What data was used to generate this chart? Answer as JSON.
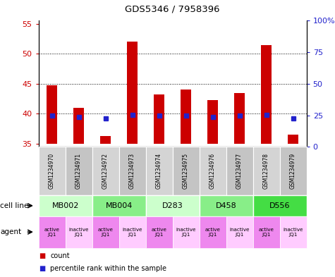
{
  "title": "GDS5346 / 7958396",
  "samples": [
    "GSM1234970",
    "GSM1234971",
    "GSM1234972",
    "GSM1234973",
    "GSM1234974",
    "GSM1234975",
    "GSM1234976",
    "GSM1234977",
    "GSM1234978",
    "GSM1234979"
  ],
  "count_values": [
    44.7,
    41.0,
    36.3,
    52.0,
    43.2,
    44.0,
    42.3,
    43.5,
    51.5,
    36.5
  ],
  "percentile_values": [
    24.5,
    23.5,
    22.5,
    25.5,
    24.5,
    24.5,
    23.5,
    24.5,
    25.5,
    22.5
  ],
  "count_base": 35.0,
  "ylim_left": [
    34.5,
    55.5
  ],
  "ylim_right": [
    0,
    100
  ],
  "yticks_left": [
    35,
    40,
    45,
    50,
    55
  ],
  "yticks_right": [
    0,
    25,
    50,
    75,
    100
  ],
  "ytick_labels_right": [
    "0",
    "25",
    "50",
    "75",
    "100%"
  ],
  "bar_color": "#cc0000",
  "dot_color": "#2222cc",
  "cell_lines": [
    {
      "label": "MB002",
      "cols": [
        0,
        1
      ],
      "color": "#ccffcc"
    },
    {
      "label": "MB004",
      "cols": [
        2,
        3
      ],
      "color": "#88ee88"
    },
    {
      "label": "D283",
      "cols": [
        4,
        5
      ],
      "color": "#ccffcc"
    },
    {
      "label": "D458",
      "cols": [
        6,
        7
      ],
      "color": "#88ee88"
    },
    {
      "label": "D556",
      "cols": [
        8,
        9
      ],
      "color": "#44dd44"
    }
  ],
  "agents": [
    {
      "label": "active\nJQ1",
      "color": "#ee88ee"
    },
    {
      "label": "inactive\nJQ1",
      "color": "#ffccff"
    },
    {
      "label": "active\nJQ1",
      "color": "#ee88ee"
    },
    {
      "label": "inactive\nJQ1",
      "color": "#ffccff"
    },
    {
      "label": "active\nJQ1",
      "color": "#ee88ee"
    },
    {
      "label": "inactive\nJQ1",
      "color": "#ffccff"
    },
    {
      "label": "active\nJQ1",
      "color": "#ee88ee"
    },
    {
      "label": "inactive\nJQ1",
      "color": "#ffccff"
    },
    {
      "label": "active\nJQ1",
      "color": "#ee88ee"
    },
    {
      "label": "inactive\nJQ1",
      "color": "#ffccff"
    }
  ],
  "grid_yticks": [
    40,
    45,
    50
  ],
  "tick_label_color_left": "#cc0000",
  "tick_label_color_right": "#2222cc",
  "sample_colors": [
    "#d4d4d4",
    "#c4c4c4",
    "#d4d4d4",
    "#c4c4c4",
    "#d4d4d4",
    "#c4c4c4",
    "#d4d4d4",
    "#c4c4c4",
    "#d4d4d4",
    "#c4c4c4"
  ]
}
